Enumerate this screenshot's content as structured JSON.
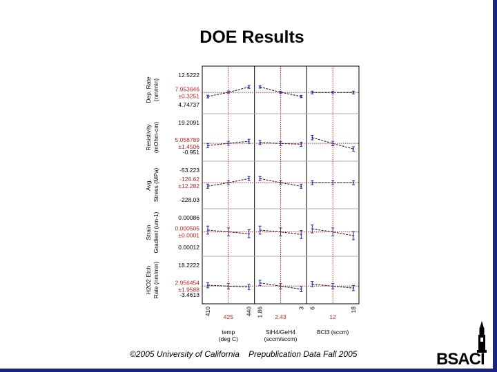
{
  "slide": {
    "title": "DOE Results",
    "footer_left": "©2005 University of California",
    "footer_right": "Prepublication Data Fall 2005",
    "logo_text": "BSACI"
  },
  "colors": {
    "data": "#1c1cb8",
    "ref": "#cc2222",
    "axis": "#000000",
    "divider": "#aaaaaa"
  },
  "chart_data": {
    "type": "line",
    "title": "DOE Results",
    "factors": [
      {
        "label": "temp\n(deg C)",
        "levels": [
          410,
          425,
          440
        ],
        "tick_labels": [
          "410",
          "425",
          "440"
        ],
        "range": [
          410,
          440
        ]
      },
      {
        "label": "SiH4/GeH4\n(sccm/sccm)",
        "levels": [
          1.86,
          2.43,
          3
        ],
        "tick_labels": [
          "1.86",
          "2.43",
          "3"
        ],
        "range": [
          1.86,
          3
        ]
      },
      {
        "label": "BCl3 (sccm)",
        "levels": [
          6,
          12,
          18
        ],
        "tick_labels": [
          "6",
          "12",
          "18"
        ],
        "range": [
          6,
          18
        ]
      }
    ],
    "responses": [
      {
        "label": "Dep. Rate\n(nm/min)",
        "ylim": [
          4.74737,
          12.5222
        ],
        "tick_top": "12.5222",
        "tick_bottom": "4.74737",
        "center": "7.953646",
        "ci": "±0.3251",
        "center_value": 7.953646,
        "series": [
          {
            "means": [
              6.9,
              8.0,
              9.4
            ],
            "err": 0.35
          },
          {
            "means": [
              9.4,
              8.0,
              6.9
            ],
            "err": 0.3
          },
          {
            "means": [
              7.95,
              7.95,
              7.95
            ],
            "err": 0.35
          }
        ]
      },
      {
        "label": "Resistivity\n(mOhm-cm)",
        "ylim": [
          -0.951,
          19.2091
        ],
        "tick_top": "19.2091",
        "tick_bottom": "-0.951",
        "center": "5.058789",
        "ci": "±1.4506",
        "center_value": 5.058789,
        "series": [
          {
            "means": [
              3.6,
              5.1,
              6.5
            ],
            "err": 1.4
          },
          {
            "means": [
              5.7,
              5.0,
              4.5
            ],
            "err": 1.4
          },
          {
            "means": [
              9.0,
              5.0,
              1.3
            ],
            "err": 1.5
          }
        ]
      },
      {
        "label": "Avg.\nStress (MPa)",
        "ylim": [
          -228.03,
          -53.223
        ],
        "tick_top": "-53.223",
        "tick_bottom": "-228.03",
        "center": "-126.62",
        "ci": "±12.282",
        "center_value": -126.62,
        "series": [
          {
            "means": [
              -148,
              -127,
              -103
            ],
            "err": 12
          },
          {
            "means": [
              -103,
              -127,
              -148
            ],
            "err": 12
          },
          {
            "means": [
              -127,
              -127,
              -127
            ],
            "err": 12
          }
        ]
      },
      {
        "label": "Strain\nGradient (um-1)",
        "ylim": [
          0.00012,
          0.00086
        ],
        "tick_top": "0.00086",
        "tick_bottom": "0.00012",
        "center": "0.000505",
        "ci": "±0.0001",
        "center_value": 0.000505,
        "series": [
          {
            "means": [
              0.00055,
              0.000505,
              0.00046
            ],
            "err": 0.0001
          },
          {
            "means": [
              0.00055,
              0.000505,
              0.00044
            ],
            "err": 0.0001
          },
          {
            "means": [
              0.00058,
              0.000505,
              0.00041
            ],
            "err": 0.0001
          }
        ]
      },
      {
        "label": "H2O2 Etch\nRate (nm/min)",
        "ylim": [
          -3.4613,
          18.2222
        ],
        "tick_top": "18.2222",
        "tick_bottom": "-3.4613",
        "center": "2.956454",
        "ci": "±1.9588",
        "center_value": 2.956454,
        "series": [
          {
            "means": [
              3.6,
              2.9,
              2.3
            ],
            "err": 1.9
          },
          {
            "means": [
              5.3,
              2.9,
              0.7
            ],
            "err": 1.9
          },
          {
            "means": [
              4.4,
              2.9,
              1.5
            ],
            "err": 1.9
          }
        ]
      }
    ]
  }
}
